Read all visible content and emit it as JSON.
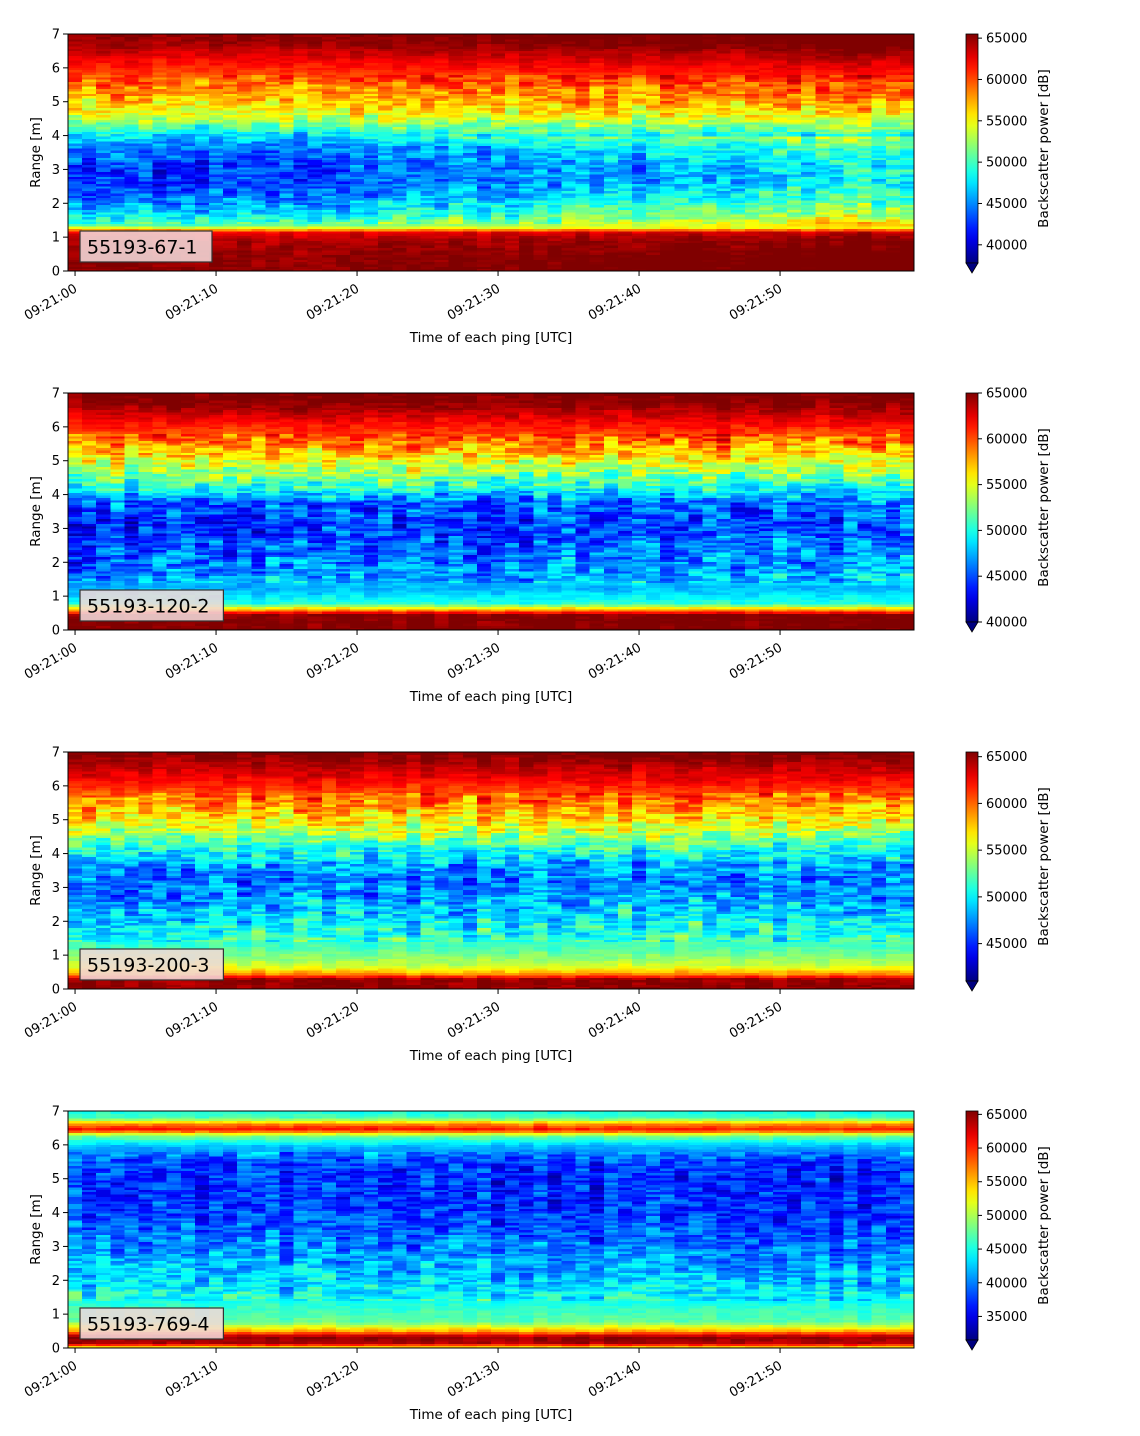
{
  "chart_data": [
    {
      "type": "heatmap",
      "label": "55193-67-1",
      "xlabel": "Time of each ping [UTC]",
      "ylabel": "Range [m]",
      "xticks": [
        "09:21:00",
        "09:21:10",
        "09:21:20",
        "09:21:30",
        "09:21:40",
        "09:21:50"
      ],
      "yticks": [
        0,
        1,
        2,
        3,
        4,
        5,
        6,
        7
      ],
      "xlim_seconds": [
        -0.5,
        59.5
      ],
      "ylim": [
        0,
        7
      ],
      "colorbar": {
        "label": "Backscatter power [dB]",
        "colormap": "jet",
        "vmin": 37800,
        "vmax": 65500,
        "extend": "min",
        "ticks": [
          40000,
          45000,
          50000,
          55000,
          60000,
          65000
        ]
      },
      "profile": [
        [
          0.15,
          65000
        ],
        [
          0.3,
          65000
        ],
        [
          0.9,
          64000
        ],
        [
          1.15,
          62500
        ],
        [
          1.35,
          50500
        ],
        [
          1.7,
          47000
        ],
        [
          2.2,
          44000
        ],
        [
          2.7,
          42500
        ],
        [
          3.2,
          42500
        ],
        [
          3.7,
          44500
        ],
        [
          4.1,
          48500
        ],
        [
          4.5,
          53000
        ],
        [
          5.0,
          56500
        ],
        [
          5.5,
          58500
        ],
        [
          6.0,
          61000
        ],
        [
          6.4,
          63000
        ],
        [
          6.7,
          64500
        ],
        [
          7.0,
          65000
        ]
      ],
      "drift": [
        [
          0,
          0
        ],
        [
          20,
          800
        ],
        [
          40,
          3500
        ],
        [
          59,
          6500
        ]
      ],
      "noise": 3500
    },
    {
      "type": "heatmap",
      "label": "55193-120-2",
      "xlabel": "Time of each ping [UTC]",
      "ylabel": "Range [m]",
      "xticks": [
        "09:21:00",
        "09:21:10",
        "09:21:20",
        "09:21:30",
        "09:21:40",
        "09:21:50"
      ],
      "yticks": [
        0,
        1,
        2,
        3,
        4,
        5,
        6,
        7
      ],
      "xlim_seconds": [
        -0.5,
        59.5
      ],
      "ylim": [
        0,
        7
      ],
      "colorbar": {
        "label": "Backscatter power [dB]",
        "colormap": "jet",
        "vmin": 40000,
        "vmax": 65000,
        "extend": "min",
        "ticks": [
          40000,
          45000,
          50000,
          55000,
          60000,
          65000
        ]
      },
      "profile": [
        [
          0.05,
          65000
        ],
        [
          0.45,
          65000
        ],
        [
          0.6,
          58000
        ],
        [
          0.8,
          50000
        ],
        [
          1.2,
          47500
        ],
        [
          1.8,
          46000
        ],
        [
          2.5,
          44500
        ],
        [
          3.2,
          43500
        ],
        [
          3.8,
          45000
        ],
        [
          4.3,
          50500
        ],
        [
          4.8,
          54000
        ],
        [
          5.3,
          57000
        ],
        [
          5.8,
          60000
        ],
        [
          6.3,
          62500
        ],
        [
          6.7,
          64500
        ],
        [
          7.0,
          65000
        ]
      ],
      "drift": [
        [
          0,
          0
        ],
        [
          59,
          1800
        ]
      ],
      "noise": 3800
    },
    {
      "type": "heatmap",
      "label": "55193-200-3",
      "xlabel": "Time of each ping [UTC]",
      "ylabel": "Range [m]",
      "xticks": [
        "09:21:00",
        "09:21:10",
        "09:21:20",
        "09:21:30",
        "09:21:40",
        "09:21:50"
      ],
      "yticks": [
        0,
        1,
        2,
        3,
        4,
        5,
        6,
        7
      ],
      "xlim_seconds": [
        -0.5,
        59.5
      ],
      "ylim": [
        0,
        7
      ],
      "colorbar": {
        "label": "Backscatter power [dB]",
        "colormap": "jet",
        "vmin": 41000,
        "vmax": 65500,
        "extend": "min",
        "ticks": [
          45000,
          50000,
          55000,
          60000,
          65000
        ]
      },
      "profile": [
        [
          0.05,
          65000
        ],
        [
          0.3,
          65000
        ],
        [
          0.45,
          59000
        ],
        [
          0.7,
          55000
        ],
        [
          1.2,
          52000
        ],
        [
          1.8,
          50000
        ],
        [
          2.5,
          48000
        ],
        [
          3.2,
          46500
        ],
        [
          3.8,
          48500
        ],
        [
          4.3,
          52000
        ],
        [
          4.8,
          55500
        ],
        [
          5.3,
          58000
        ],
        [
          5.8,
          60500
        ],
        [
          6.3,
          63000
        ],
        [
          6.7,
          64500
        ],
        [
          7.0,
          65500
        ]
      ],
      "drift": [
        [
          0,
          0
        ],
        [
          59,
          500
        ]
      ],
      "noise": 3600
    },
    {
      "type": "heatmap",
      "label": "55193-769-4",
      "xlabel": "Time of each ping [UTC]",
      "ylabel": "Range [m]",
      "xticks": [
        "09:21:00",
        "09:21:10",
        "09:21:20",
        "09:21:30",
        "09:21:40",
        "09:21:50"
      ],
      "yticks": [
        0,
        1,
        2,
        3,
        4,
        5,
        6,
        7
      ],
      "xlim_seconds": [
        -0.5,
        59.5
      ],
      "ylim": [
        0,
        7
      ],
      "colorbar": {
        "label": "Backscatter power [dB]",
        "colormap": "jet",
        "vmin": 31500,
        "vmax": 65500,
        "extend": "min",
        "ticks": [
          35000,
          40000,
          45000,
          50000,
          55000,
          60000,
          65000
        ]
      },
      "profile": [
        [
          0.05,
          55000
        ],
        [
          0.15,
          64000
        ],
        [
          0.35,
          65000
        ],
        [
          0.5,
          56000
        ],
        [
          0.8,
          47500
        ],
        [
          1.3,
          45500
        ],
        [
          2.0,
          43000
        ],
        [
          2.8,
          41000
        ],
        [
          3.5,
          39000
        ],
        [
          4.2,
          37500
        ],
        [
          5.0,
          37000
        ],
        [
          5.6,
          38500
        ],
        [
          6.0,
          42500
        ],
        [
          6.3,
          49000
        ],
        [
          6.45,
          61000
        ],
        [
          6.6,
          58000
        ],
        [
          6.8,
          47000
        ],
        [
          7.0,
          45000
        ]
      ],
      "drift": [
        [
          0,
          0
        ],
        [
          59,
          -900
        ]
      ],
      "noise": 4200
    }
  ]
}
